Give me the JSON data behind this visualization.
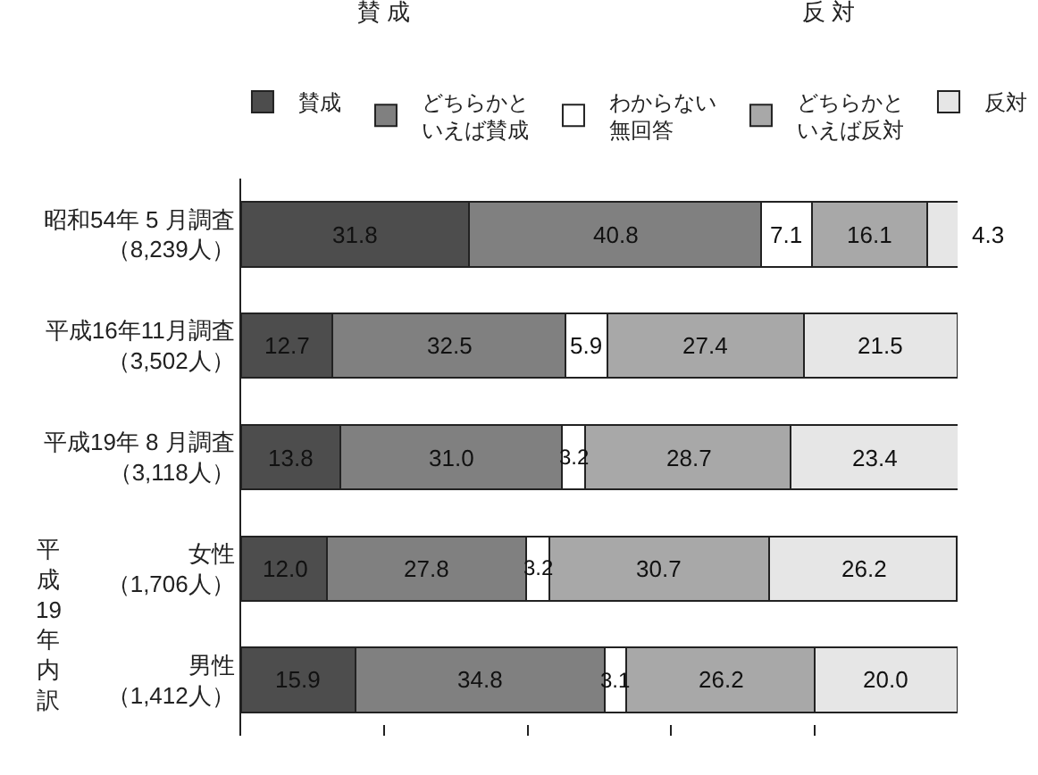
{
  "chart_data": {
    "type": "bar",
    "orientation": "horizontal",
    "stacked": true,
    "categories": [
      "昭和54年 5 月調査（8,239人）",
      "平成16年11月調査（3,502人）",
      "平成19年 8 月調査（3,118人）",
      "女性（1,706人）",
      "男性（1,412人）"
    ],
    "series": [
      {
        "name": "賛成",
        "color": "#4d4d4d",
        "values": [
          31.8,
          12.7,
          13.8,
          12.0,
          15.9
        ],
        "value_labels": [
          "31.8",
          "12.7",
          "13.8",
          "12.0",
          "15.9"
        ]
      },
      {
        "name": "どちらかといえば賛成",
        "color": "#808080",
        "values": [
          40.8,
          32.5,
          31.0,
          27.8,
          34.8
        ],
        "value_labels": [
          "40.8",
          "32.5",
          "31.0",
          "27.8",
          "34.8"
        ]
      },
      {
        "name": "わからない無回答",
        "color": "#ffffff",
        "values": [
          7.1,
          5.9,
          3.2,
          3.2,
          3.1
        ],
        "value_labels": [
          "7.1",
          "5.9",
          "3.2",
          "3.2",
          "3.1"
        ]
      },
      {
        "name": "どちらかといえば反対",
        "color": "#a8a8a8",
        "values": [
          16.1,
          27.4,
          28.7,
          30.7,
          26.2
        ],
        "value_labels": [
          "16.1",
          "27.4",
          "28.7",
          "30.7",
          "26.2"
        ]
      },
      {
        "name": "反対",
        "color": "#e6e6e6",
        "values": [
          4.3,
          21.5,
          23.4,
          26.2,
          20.0
        ],
        "value_labels": [
          "4.3",
          "21.5",
          "23.4",
          "26.2",
          "20.0"
        ]
      }
    ],
    "xlim": [
      0,
      100
    ],
    "xticks": [
      {
        "value": 0,
        "label": null
      },
      {
        "value": 20,
        "label": null
      },
      {
        "value": 40,
        "label": null
      },
      {
        "value": 60,
        "label": null
      },
      {
        "value": 80,
        "label": null
      }
    ],
    "tick_labels": "y",
    "grid": false,
    "legend": "top",
    "annotations": [
      "賛 成",
      "反 対",
      "平成19年内訳"
    ]
  }
}
